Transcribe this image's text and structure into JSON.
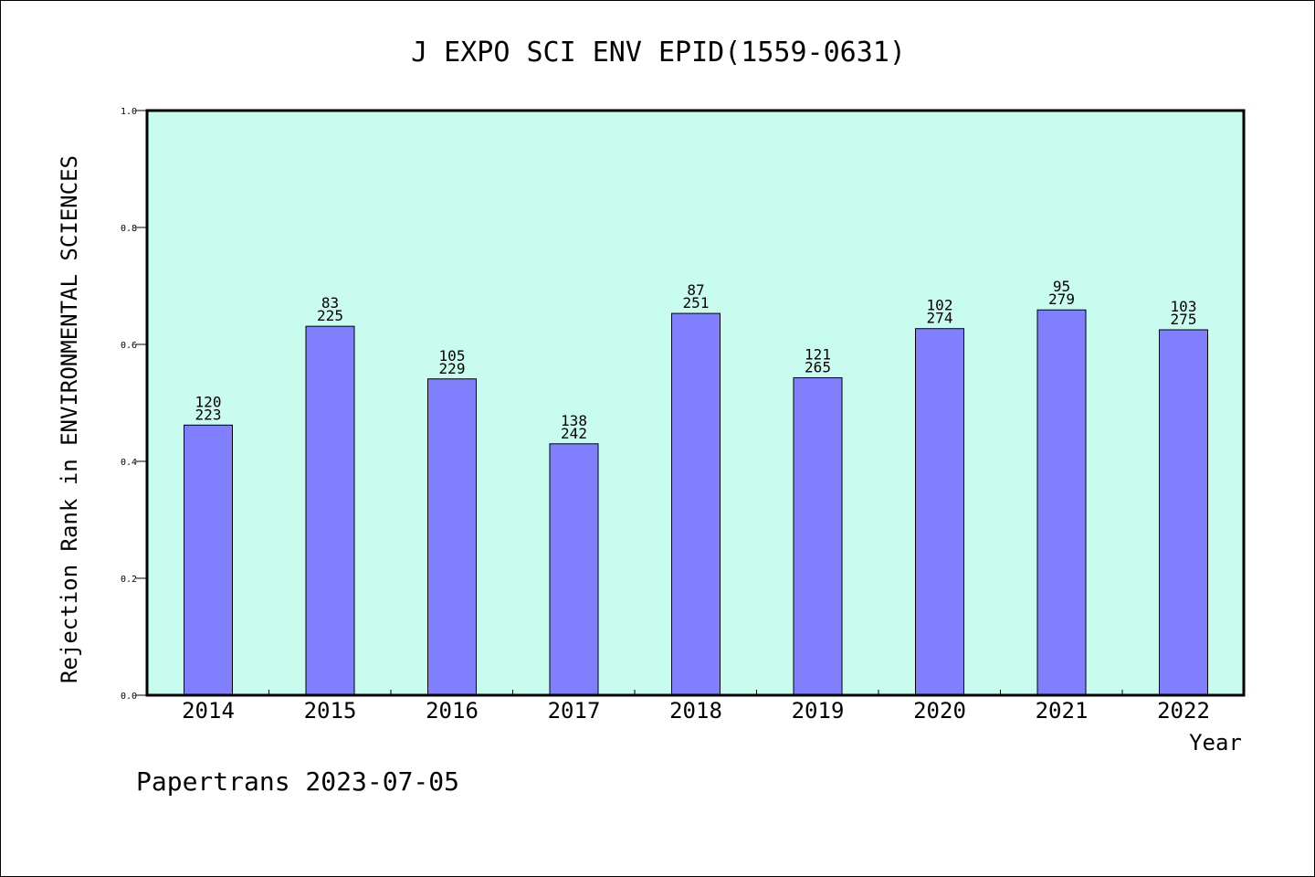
{
  "chart_data": {
    "type": "bar",
    "title": "J EXPO SCI ENV EPID(1559-0631)",
    "xlabel": "Year",
    "ylabel": "Rejection Rank in ENVIRONMENTAL SCIENCES",
    "categories": [
      "2014",
      "2015",
      "2016",
      "2017",
      "2018",
      "2019",
      "2020",
      "2021",
      "2022"
    ],
    "values": [
      0.462,
      0.631,
      0.541,
      0.43,
      0.653,
      0.543,
      0.627,
      0.659,
      0.625
    ],
    "rank_labels": [
      "120",
      "83",
      "105",
      "138",
      "87",
      "121",
      "102",
      "95",
      "103"
    ],
    "total_labels": [
      "223",
      "225",
      "229",
      "242",
      "251",
      "265",
      "274",
      "279",
      "275"
    ],
    "ylim": [
      0,
      1.0
    ],
    "yticks": [
      "0.0",
      "0.2",
      "0.4",
      "0.6",
      "0.8",
      "1.0"
    ],
    "grid": false,
    "legend": "none",
    "bar_color": "#8080ff",
    "plot_background": "#c8fcee"
  },
  "footer": {
    "text": "Papertrans 2023-07-05"
  }
}
